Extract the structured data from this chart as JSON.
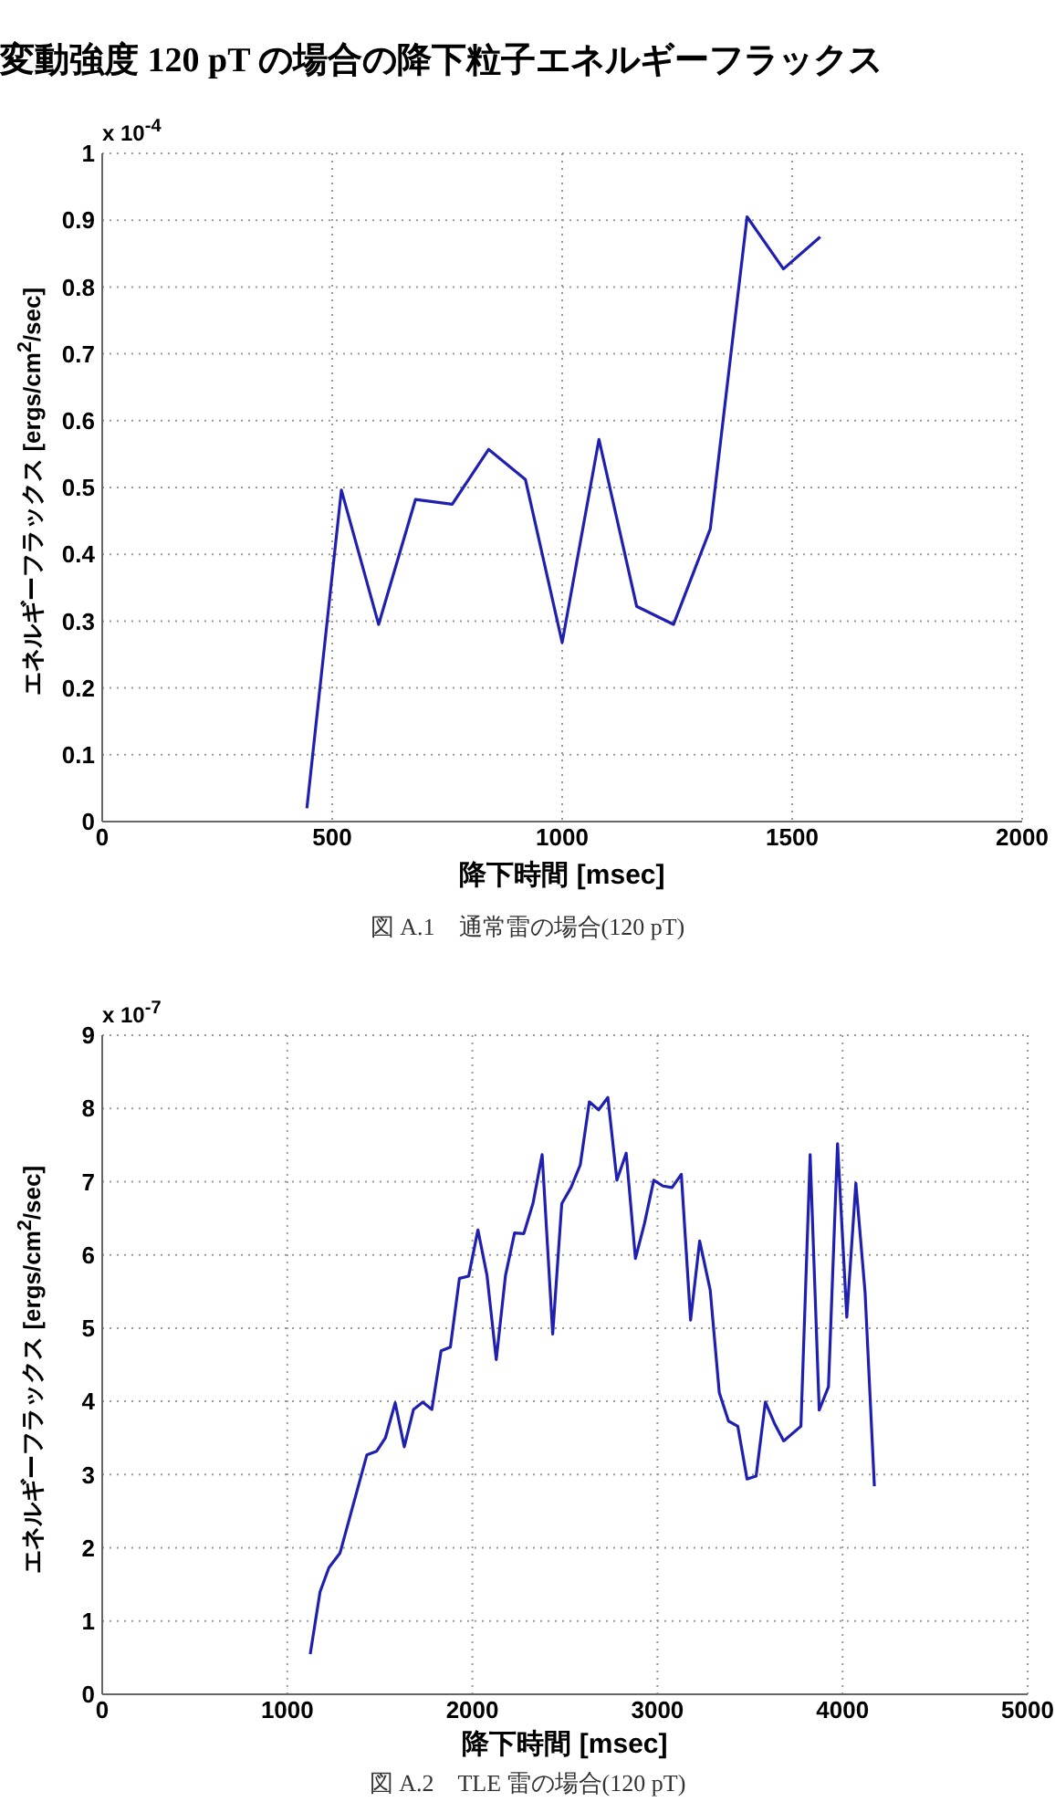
{
  "chart_data": [
    {
      "type": "line",
      "title": "変動強度 120 pT の場合の降下粒子エネルギーフラックス",
      "xlabel": "降下時間 [msec]",
      "ylabel": "エネルギーフラックス [ergs/cm$^{2}$/sec]",
      "annotations": [
        "x 10$^{-4}$",
        "図 A.1　通常雷の場合(120 pT)"
      ],
      "x": [
        445,
        520,
        601,
        681,
        761,
        840,
        920,
        1000,
        1080,
        1162,
        1242,
        1322,
        1402,
        1481,
        1561
      ],
      "series": [
        {
          "color": "#2020b0",
          "values": [
            0.02,
            0.496,
            0.295,
            0.482,
            0.475,
            0.557,
            0.512,
            0.268,
            0.572,
            0.322,
            0.295,
            0.438,
            0.905,
            0.827,
            0.875
          ]
        }
      ],
      "xlim": [
        0,
        2000
      ],
      "ylim": [
        0,
        1
      ],
      "xticks": [
        0,
        500,
        1000,
        1500,
        2000
      ],
      "yticks": [
        0,
        0.1,
        0.2,
        0.3,
        0.4,
        0.5,
        0.6,
        0.7,
        0.8,
        0.9,
        1
      ],
      "grid": true,
      "legend": false
    },
    {
      "type": "line",
      "xlabel": "降下時間 [msec]",
      "ylabel": "エネルギーフラックス [ergs/cm$^{2}$/sec]",
      "annotations": [
        "x 10$^{-7}$",
        "図 A.2　TLE 雷の場合(120 pT)"
      ],
      "x": [
        1124,
        1177,
        1225,
        1285,
        1430,
        1483,
        1530,
        1583,
        1632,
        1682,
        1732,
        1781,
        1831,
        1881,
        1930,
        1980,
        2030,
        2079,
        2129,
        2179,
        2228,
        2278,
        2328,
        2377,
        2434,
        2483,
        2533,
        2583,
        2632,
        2682,
        2732,
        2781,
        2831,
        2881,
        2930,
        2980,
        3030,
        3079,
        3129,
        3179,
        3228,
        3285,
        3334,
        3384,
        3434,
        3484,
        3533,
        3583,
        3632,
        3682,
        3775,
        3825,
        3874,
        3924,
        3973,
        4023,
        4072,
        4122,
        4172
      ],
      "series": [
        {
          "color": "#2020b0",
          "values": [
            0.55,
            1.4,
            1.73,
            1.93,
            3.27,
            3.32,
            3.5,
            3.98,
            3.38,
            3.89,
            3.99,
            3.89,
            4.69,
            4.74,
            5.68,
            5.71,
            6.34,
            5.72,
            4.57,
            5.72,
            6.3,
            6.29,
            6.71,
            7.37,
            4.92,
            6.7,
            6.92,
            7.23,
            8.09,
            7.98,
            8.15,
            7.02,
            7.39,
            5.95,
            6.43,
            7.02,
            6.94,
            6.92,
            7.1,
            5.11,
            6.19,
            5.52,
            4.12,
            3.73,
            3.66,
            2.94,
            2.98,
            3.99,
            3.7,
            3.46,
            3.66,
            7.37,
            3.88,
            4.2,
            7.52,
            5.15,
            6.98,
            5.48,
            2.84
          ]
        }
      ],
      "xlim": [
        0,
        5000
      ],
      "ylim": [
        0,
        9
      ],
      "xticks": [
        0,
        1000,
        2000,
        3000,
        4000,
        5000
      ],
      "yticks": [
        0,
        1,
        2,
        3,
        4,
        5,
        6,
        7,
        8,
        9
      ],
      "grid": true,
      "legend": false
    }
  ]
}
